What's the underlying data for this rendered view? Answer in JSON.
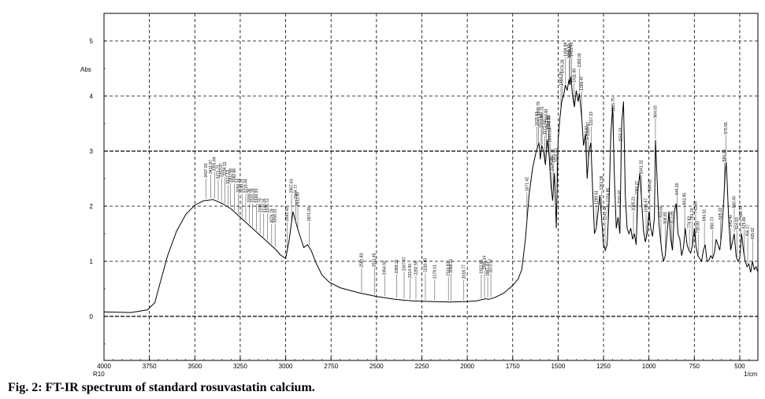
{
  "caption": "Fig. 2: FT-IR spectrum of standard rosuvastatin calcium.",
  "chart_data": {
    "type": "line",
    "xlabel": "1/cm",
    "ylabel": "Abs",
    "sample_label": "R10",
    "x_reversed": true,
    "xlim": [
      4000,
      400
    ],
    "ylim": [
      -0.8,
      5.5
    ],
    "x_ticks": [
      4000,
      3750,
      3500,
      3250,
      3000,
      2750,
      2500,
      2250,
      2000,
      1750,
      1500,
      1250,
      1000,
      750,
      500
    ],
    "y_ticks": [
      0,
      1,
      2,
      3,
      4,
      5
    ],
    "grid": "dashed",
    "x": [
      4000,
      3850,
      3760,
      3720,
      3700,
      3650,
      3600,
      3550,
      3500,
      3450,
      3400,
      3350,
      3300,
      3250,
      3200,
      3150,
      3100,
      3050,
      3030,
      3000,
      2980,
      2960,
      2930,
      2900,
      2880,
      2860,
      2830,
      2800,
      2760,
      2700,
      2600,
      2500,
      2400,
      2300,
      2200,
      2100,
      2000,
      1950,
      1900,
      1880,
      1850,
      1800,
      1750,
      1720,
      1700,
      1680,
      1660,
      1640,
      1620,
      1605,
      1598,
      1590,
      1580,
      1570,
      1560,
      1549,
      1540,
      1530,
      1520,
      1510,
      1500,
      1490,
      1480,
      1470,
      1460,
      1450,
      1440,
      1435,
      1430,
      1420,
      1410,
      1400,
      1390,
      1383,
      1370,
      1360,
      1350,
      1340,
      1330,
      1320,
      1300,
      1290,
      1270,
      1260,
      1250,
      1240,
      1230,
      1220,
      1210,
      1200,
      1190,
      1180,
      1170,
      1160,
      1150,
      1140,
      1130,
      1120,
      1110,
      1100,
      1090,
      1080,
      1070,
      1060,
      1050,
      1040,
      1030,
      1020,
      1010,
      1000,
      990,
      980,
      970,
      964,
      955,
      945,
      930,
      920,
      910,
      900,
      890,
      880,
      870,
      860,
      850,
      840,
      830,
      820,
      810,
      800,
      790,
      780,
      770,
      760,
      750,
      740,
      730,
      720,
      710,
      700,
      690,
      680,
      670,
      660,
      650,
      640,
      630,
      620,
      610,
      600,
      590,
      580,
      575,
      570,
      560,
      550,
      540,
      530,
      520,
      510,
      500,
      490,
      480,
      470,
      460,
      450,
      440,
      430,
      420,
      410,
      400
    ],
    "y": [
      0.08,
      0.07,
      0.12,
      0.25,
      0.5,
      1.1,
      1.55,
      1.85,
      2.02,
      2.1,
      2.12,
      2.05,
      1.95,
      1.8,
      1.65,
      1.5,
      1.35,
      1.2,
      1.12,
      1.05,
      1.4,
      1.9,
      1.55,
      1.25,
      1.3,
      1.2,
      0.95,
      0.75,
      0.62,
      0.52,
      0.43,
      0.36,
      0.31,
      0.28,
      0.27,
      0.26,
      0.27,
      0.28,
      0.32,
      0.31,
      0.34,
      0.42,
      0.56,
      0.68,
      0.85,
      1.4,
      2.2,
      2.7,
      3.0,
      3.15,
      2.85,
      3.1,
      3.0,
      2.75,
      3.2,
      2.9,
      2.4,
      2.1,
      2.6,
      1.6,
      3.2,
      3.6,
      3.9,
      4.0,
      4.2,
      4.1,
      4.3,
      4.2,
      4.35,
      4.0,
      3.8,
      4.1,
      3.9,
      4.05,
      3.6,
      3.1,
      3.3,
      2.5,
      3.0,
      3.15,
      1.5,
      1.6,
      2.2,
      1.75,
      1.3,
      1.2,
      1.3,
      2.0,
      3.3,
      3.8,
      2.5,
      1.6,
      1.8,
      1.5,
      3.5,
      3.9,
      2.2,
      1.6,
      1.5,
      1.6,
      1.4,
      1.5,
      1.3,
      2.3,
      2.6,
      2.1,
      1.55,
      1.35,
      1.5,
      1.9,
      1.6,
      1.45,
      1.8,
      3.2,
      2.5,
      1.7,
      1.2,
      1.0,
      1.1,
      1.5,
      1.9,
      1.4,
      1.2,
      1.9,
      2.05,
      1.5,
      1.4,
      1.1,
      1.25,
      1.6,
      1.3,
      1.2,
      1.15,
      1.3,
      1.6,
      1.25,
      1.1,
      1.05,
      1.0,
      1.2,
      1.3,
      1.0,
      1.02,
      1.1,
      1.05,
      1.15,
      1.4,
      1.3,
      1.2,
      1.5,
      2.0,
      2.6,
      2.8,
      2.5,
      1.7,
      1.2,
      1.35,
      1.5,
      1.1,
      1.0,
      1.05,
      1.5,
      1.2,
      1.0,
      0.9,
      0.95,
      0.8,
      1.0,
      0.85,
      0.9,
      0.8
    ],
    "peak_labels": [
      {
        "x": 3437.93,
        "text": "3437.93"
      },
      {
        "x": 3411.87,
        "text": "3411.87"
      },
      {
        "x": 3391.64,
        "text": "3391.64"
      },
      {
        "x": 3371.21,
        "text": "3371.21"
      },
      {
        "x": 3353.07,
        "text": "3353.07"
      },
      {
        "x": 3334.13,
        "text": "3334.13"
      },
      {
        "x": 3317.13,
        "text": "3317.13"
      },
      {
        "x": 3302.68,
        "text": "3302.68"
      },
      {
        "x": 3282.96,
        "text": "3282.96"
      },
      {
        "x": 3260.26,
        "text": "3260.26"
      },
      {
        "x": 3240.21,
        "text": "3240.21"
      },
      {
        "x": 3219.44,
        "text": "3219.44"
      },
      {
        "x": 3200.36,
        "text": "3200.36"
      },
      {
        "x": 3181.28,
        "text": "3181.28"
      },
      {
        "x": 3160.33,
        "text": "3160.33"
      },
      {
        "x": 3140.76,
        "text": "3140.76"
      },
      {
        "x": 3120.34,
        "text": "3120.34"
      },
      {
        "x": 3100.72,
        "text": "3100.72"
      },
      {
        "x": 3076.79,
        "text": "3076.79"
      },
      {
        "x": 3058.31,
        "text": "3058.31"
      },
      {
        "x": 2967.61,
        "text": "2967.61"
      },
      {
        "x": 2932.89,
        "text": "2932.89"
      },
      {
        "x": 2871.09,
        "text": "2871.09"
      },
      {
        "x": 2991.42,
        "text": "2991.42"
      },
      {
        "x": 2944.77,
        "text": "2944.77"
      },
      {
        "x": 2581.83,
        "text": "2581.83"
      },
      {
        "x": 2511.45,
        "text": "2511.45"
      },
      {
        "x": 2454.92,
        "text": "2454.92"
      },
      {
        "x": 2389.27,
        "text": "2389.27"
      },
      {
        "x": 2347.47,
        "text": "2347.47"
      },
      {
        "x": 2314.9,
        "text": "2314.90"
      },
      {
        "x": 2282.55,
        "text": "2282.55"
      },
      {
        "x": 2230.65,
        "text": "2230.65"
      },
      {
        "x": 2179.01,
        "text": "2179.01"
      },
      {
        "x": 2103.83,
        "text": "2103.83"
      },
      {
        "x": 2089.21,
        "text": "2089.21"
      },
      {
        "x": 2018.77,
        "text": "2018.77"
      },
      {
        "x": 1922.86,
        "text": "1922.86"
      },
      {
        "x": 1905.14,
        "text": "1905.14"
      },
      {
        "x": 1887.43,
        "text": "1887.43"
      },
      {
        "x": 1870.07,
        "text": "1870.07"
      },
      {
        "x": 1671.42,
        "text": "1671.42"
      },
      {
        "x": 1615.63,
        "text": "1615.63"
      },
      {
        "x": 1588.31,
        "text": "1588.31"
      },
      {
        "x": 1608.79,
        "text": "1608.79"
      },
      {
        "x": 1592.97,
        "text": "1592.97"
      },
      {
        "x": 1573.02,
        "text": "1573.02"
      },
      {
        "x": 1564.81,
        "text": "1564.81"
      },
      {
        "x": 1551.8,
        "text": "1551.80"
      },
      {
        "x": 1549.8,
        "text": "1549.80"
      },
      {
        "x": 1544.09,
        "text": "1544.09"
      },
      {
        "x": 1534.09,
        "text": "1534.09"
      },
      {
        "x": 1525.77,
        "text": "1525.77"
      },
      {
        "x": 1505.83,
        "text": "1505.83"
      },
      {
        "x": 1484.29,
        "text": "1484.29"
      },
      {
        "x": 1476.26,
        "text": "1476.26"
      },
      {
        "x": 1458.89,
        "text": "1458.89"
      },
      {
        "x": 1438.17,
        "text": "1438.17"
      },
      {
        "x": 1434.14,
        "text": "1434.14"
      },
      {
        "x": 1425.42,
        "text": "1425.42"
      },
      {
        "x": 1411.66,
        "text": "1411.66"
      },
      {
        "x": 1383.02,
        "text": "1383.02"
      },
      {
        "x": 1369.47,
        "text": "1369.47"
      },
      {
        "x": 1343.61,
        "text": "1343.61"
      },
      {
        "x": 1333.97,
        "text": "1333.97"
      },
      {
        "x": 1317.33,
        "text": "1317.33"
      },
      {
        "x": 1289.51,
        "text": "1289.51"
      },
      {
        "x": 1261.58,
        "text": "1261.58"
      },
      {
        "x": 1241.48,
        "text": "1241.48"
      },
      {
        "x": 1224.85,
        "text": "1224.85"
      },
      {
        "x": 1195.75,
        "text": "1195.75"
      },
      {
        "x": 1160.42,
        "text": "1160.42"
      },
      {
        "x": 1153.73,
        "text": "1153.73"
      },
      {
        "x": 1085.21,
        "text": "1085.21"
      },
      {
        "x": 1066.27,
        "text": "1066.27"
      },
      {
        "x": 1041.32,
        "text": "1041.32"
      },
      {
        "x": 1015.67,
        "text": "1015.67"
      },
      {
        "x": 994.62,
        "text": "994.62"
      },
      {
        "x": 964.03,
        "text": "964.03"
      },
      {
        "x": 933.6,
        "text": "933.60"
      },
      {
        "x": 908.83,
        "text": "908.83"
      },
      {
        "x": 873.85,
        "text": "873.85"
      },
      {
        "x": 844.2,
        "text": "844.20"
      },
      {
        "x": 802.95,
        "text": "802.95"
      },
      {
        "x": 776.83,
        "text": "776.83"
      },
      {
        "x": 761.74,
        "text": "761.74"
      },
      {
        "x": 742.59,
        "text": "742.59"
      },
      {
        "x": 728.8,
        "text": "728.80"
      },
      {
        "x": 694.51,
        "text": "694.51"
      },
      {
        "x": 650.73,
        "text": "650.73"
      },
      {
        "x": 605.22,
        "text": "605.22"
      },
      {
        "x": 584.36,
        "text": "584.36"
      },
      {
        "x": 575.55,
        "text": "575.55"
      },
      {
        "x": 549.4,
        "text": "549.40"
      },
      {
        "x": 530.4,
        "text": "530.40"
      },
      {
        "x": 514.93,
        "text": "514.93"
      },
      {
        "x": 492.73,
        "text": "492.73"
      },
      {
        "x": 475.8,
        "text": "475.80"
      },
      {
        "x": 456.17,
        "text": "456.17"
      },
      {
        "x": 428.62,
        "text": "428.62"
      }
    ]
  }
}
